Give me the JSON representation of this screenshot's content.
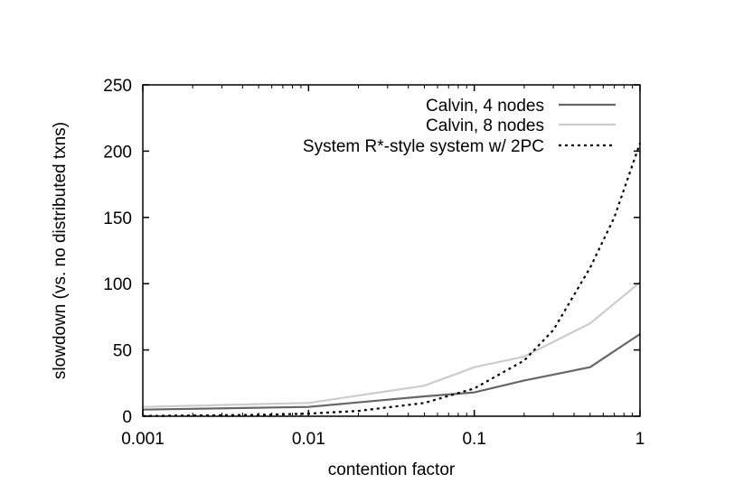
{
  "chart_data": {
    "type": "line",
    "title": "",
    "xlabel": "contention factor",
    "ylabel": "slowdown (vs. no distributed txns)",
    "x_scale": "log",
    "xlim": [
      0.001,
      1
    ],
    "ylim": [
      0,
      250
    ],
    "x_ticks": [
      0.001,
      0.01,
      0.1,
      1
    ],
    "x_tick_labels": [
      "0.001",
      "0.01",
      "0.1",
      "1"
    ],
    "y_ticks": [
      0,
      50,
      100,
      150,
      200,
      250
    ],
    "y_tick_labels": [
      "0",
      "50",
      "100",
      "150",
      "200",
      "250"
    ],
    "grid": false,
    "legend_position": "top-right",
    "series": [
      {
        "name": "Calvin, 4 nodes",
        "color": "#666666",
        "dash": "solid",
        "x": [
          0.001,
          0.01,
          0.05,
          0.1,
          0.2,
          0.5,
          1
        ],
        "y": [
          5,
          7,
          15,
          18,
          27,
          37,
          62
        ]
      },
      {
        "name": "Calvin, 8 nodes",
        "color": "#cccccc",
        "dash": "solid",
        "x": [
          0.001,
          0.01,
          0.05,
          0.1,
          0.2,
          0.5,
          1
        ],
        "y": [
          7,
          10,
          23,
          37,
          45,
          70,
          101
        ]
      },
      {
        "name": "System R*-style system w/ 2PC",
        "color": "#000000",
        "dash": "dotted",
        "x": [
          0.001,
          0.005,
          0.01,
          0.02,
          0.05,
          0.1,
          0.2,
          0.3,
          0.5,
          0.7,
          1
        ],
        "y": [
          0.2,
          1,
          2,
          4,
          10,
          21,
          42,
          65,
          112,
          150,
          206
        ]
      }
    ]
  }
}
